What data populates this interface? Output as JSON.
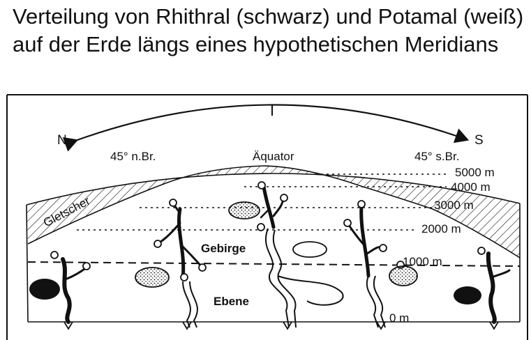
{
  "title": "Verteilung von Rhithral (schwarz) und Potamal (weiß) auf der Erde längs eines hypothetischen Meridians",
  "diagram": {
    "north": "N",
    "south": "S",
    "lat_north": "45° n.Br.",
    "equator": "Äquator",
    "lat_south": "45° s.Br.",
    "glacier": "Gletscher",
    "mountains": "Gebirge",
    "plain": "Ebene",
    "elevations": [
      "5000 m",
      "4000 m",
      "3000 m",
      "2000 m",
      "1000 m",
      "0 m"
    ]
  }
}
